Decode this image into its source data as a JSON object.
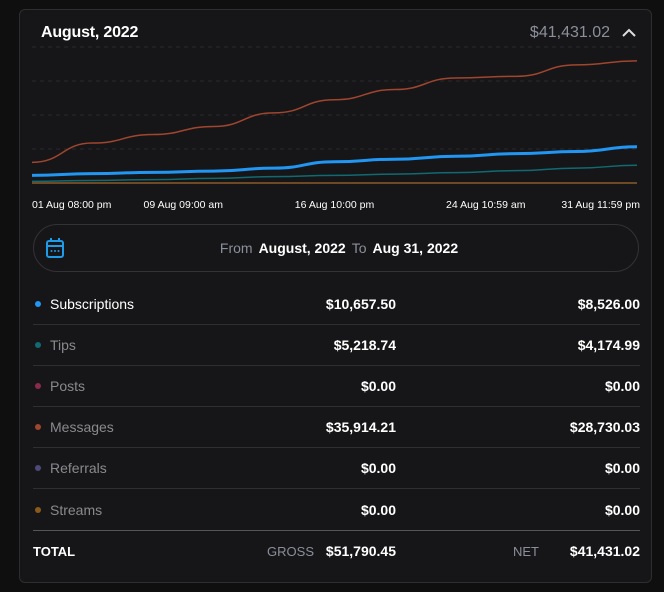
{
  "header": {
    "title": "August, 2022",
    "net_total": "$41,431.02"
  },
  "chart_data": {
    "type": "line",
    "x": [
      "2022-08-01",
      "2022-08-04",
      "2022-08-07",
      "2022-08-10",
      "2022-08-13",
      "2022-08-16",
      "2022-08-19",
      "2022-08-22",
      "2022-08-25",
      "2022-08-28",
      "2022-08-31"
    ],
    "x_tick_labels": [
      "01 Aug 08:00 pm",
      "09 Aug 09:00 am",
      "16 Aug 10:00 pm",
      "24 Aug 10:59 am",
      "31 Aug 11:59 pm"
    ],
    "ylim": [
      0,
      32000
    ],
    "grid": true,
    "series": [
      {
        "key": "messages",
        "color": "#a0452e",
        "values": [
          4860,
          9400,
          11400,
          13300,
          16500,
          19600,
          22000,
          24700,
          25100,
          27800,
          28730
        ]
      },
      {
        "key": "subscriptions",
        "color": "#2196f3",
        "values": [
          1800,
          2200,
          2500,
          2800,
          3500,
          5000,
          5600,
          6300,
          6900,
          7400,
          8526
        ]
      },
      {
        "key": "tips",
        "color": "#116a72",
        "values": [
          390,
          600,
          800,
          1100,
          1500,
          1800,
          2100,
          2450,
          2900,
          3500,
          4175
        ]
      },
      {
        "key": "streams",
        "color": "#8a5a2a",
        "values": [
          0,
          0,
          0,
          0,
          0,
          0,
          0,
          0,
          0,
          0,
          0
        ]
      }
    ]
  },
  "range": {
    "from_label": "From",
    "from_value": "August, 2022",
    "to_label": "To",
    "to_value": "Aug 31, 2022"
  },
  "rows": [
    {
      "label": "Subscriptions",
      "gross": "$10,657.50",
      "net": "$8,526.00",
      "color": "#2196f3"
    },
    {
      "label": "Tips",
      "gross": "$5,218.74",
      "net": "$4,174.99",
      "color": "#116a72"
    },
    {
      "label": "Posts",
      "gross": "$0.00",
      "net": "$0.00",
      "color": "#8b2a4a"
    },
    {
      "label": "Messages",
      "gross": "$35,914.21",
      "net": "$28,730.03",
      "color": "#a0452e"
    },
    {
      "label": "Referrals",
      "gross": "$0.00",
      "net": "$0.00",
      "color": "#4d4a7a"
    },
    {
      "label": "Streams",
      "gross": "$0.00",
      "net": "$0.00",
      "color": "#8a5a1a"
    }
  ],
  "totals": {
    "label": "TOTAL",
    "gross_label": "GROSS",
    "gross": "$51,790.45",
    "net_label": "NET",
    "net": "$41,431.02"
  }
}
